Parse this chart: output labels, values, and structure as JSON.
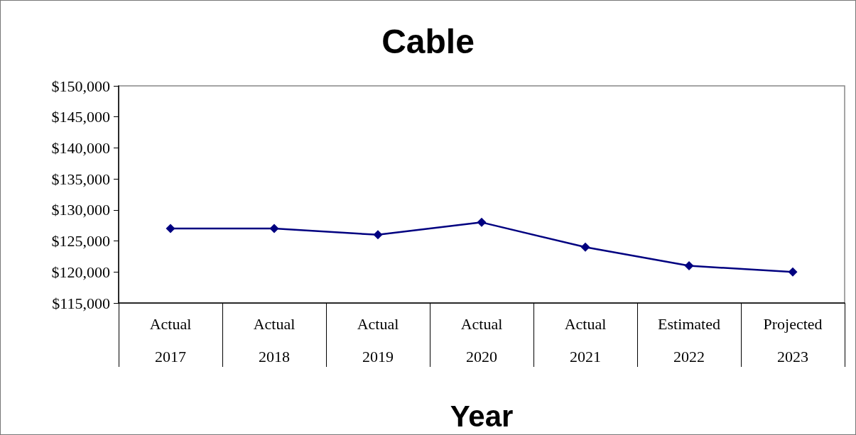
{
  "chart_data": {
    "type": "line",
    "title": "Cable",
    "xlabel": "Year",
    "categories": [
      "Actual\n2017",
      "Actual\n2018",
      "Actual\n2019",
      "Actual\n2020",
      "Actual\n2021",
      "Estimated\n2022",
      "Projected\n2023"
    ],
    "series": [
      {
        "color": "#000080",
        "values": [
          127000,
          127000,
          126000,
          128000,
          124000,
          121000,
          120000
        ]
      }
    ],
    "ylim": [
      115000,
      150000
    ],
    "yticks": [
      {
        "value": 115000,
        "label": "$115,000"
      },
      {
        "value": 120000,
        "label": "$120,000"
      },
      {
        "value": 125000,
        "label": "$125,000"
      },
      {
        "value": 130000,
        "label": "$130,000"
      },
      {
        "value": 135000,
        "label": "$135,000"
      },
      {
        "value": 140000,
        "label": "$140,000"
      },
      {
        "value": 145000,
        "label": "$145,000"
      },
      {
        "value": 150000,
        "label": "$150,000"
      }
    ],
    "grid": false,
    "marker": "diamond",
    "line_style": "solid"
  }
}
